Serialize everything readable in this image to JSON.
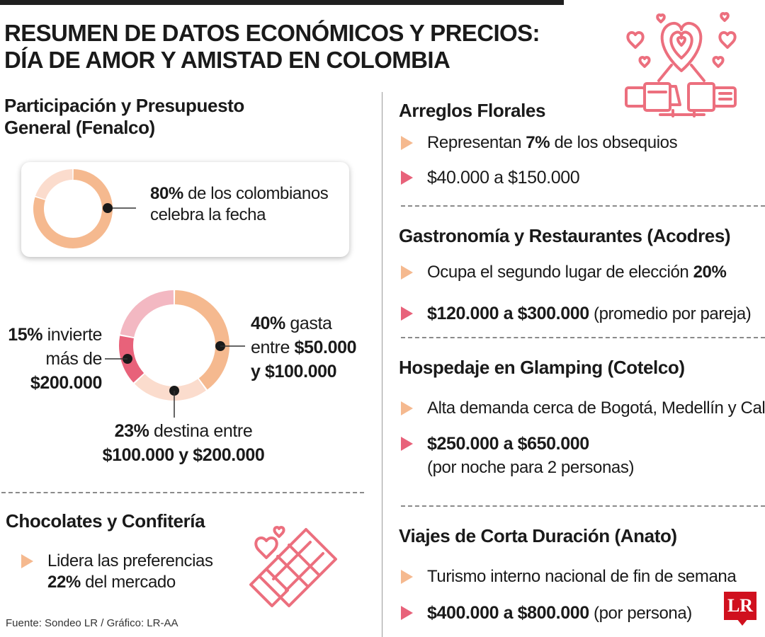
{
  "title": {
    "line1": "RESUMEN DE DATOS ECONÓMICOS Y PRECIOS:",
    "line2": "DÍA DE AMOR Y AMISTAD EN COLOMBIA"
  },
  "participation": {
    "title_line1": "Participación y Presupuesto",
    "title_line2": "General (Fenalco)",
    "celebrate_value": "80%",
    "celebrate_text1": " de los colombianos",
    "celebrate_text2": "celebra la fecha"
  },
  "budget": {
    "label_40_value": "40%",
    "label_40_text": " gasta",
    "label_40_line2_pre": "entre ",
    "label_40_line2_b": "$50.000",
    "label_40_line3": "y $100.000",
    "label_15_value": "15%",
    "label_15_text": " invierte",
    "label_15_line2": "más de",
    "label_15_line3": "$200.000",
    "label_23_value": "23%",
    "label_23_text": " destina entre",
    "label_23_line2": "$100.000 y $200.000"
  },
  "chocolates": {
    "title": "Chocolates y Confitería",
    "line1": "Lidera las preferencias",
    "value": "22%",
    "line2": " del mercado"
  },
  "flores": {
    "title": "Arreglos Florales",
    "text_pre": "Representan ",
    "text_b": "7%",
    "text_post": " de los obsequios",
    "price": "$40.000 a $150.000"
  },
  "gastronomia": {
    "title": "Gastronomía y Restaurantes (Acodres)",
    "text_pre": "Ocupa el segundo lugar de elección ",
    "text_b": "20%",
    "price": "$120.000 a $300.000",
    "price_note": " (promedio por pareja)"
  },
  "glamping": {
    "title": "Hospedaje en Glamping (Cotelco)",
    "text": "Alta demanda cerca de Bogotá, Medellín y Cali",
    "price": "$250.000 a $650.000",
    "price_note": "(por noche para 2 personas)"
  },
  "viajes": {
    "title": "Viajes de Corta Duración (Anato)",
    "text": "Turismo interno nacional de fin de semana",
    "price": "$400.000 a $800.000",
    "price_note": " (por persona)"
  },
  "source": "Fuente: Sondeo LR / Gráfico: LR-AA",
  "logo": "LR",
  "colors": {
    "peach": "#f5b98f",
    "light_peach": "#fbdccd",
    "pink": "#f3b8c2",
    "rose": "#e8627a",
    "icon": "#ec6f7e"
  },
  "chart_data": [
    {
      "type": "pie",
      "categories": [
        "celebra la fecha",
        "resto"
      ],
      "values": [
        80,
        20
      ]
    },
    {
      "type": "pie",
      "categories": [
        "gasta entre $50.000 y $100.000",
        "destina entre $100.000 y $200.000",
        "invierte más de $200.000",
        "resto"
      ],
      "values": [
        40,
        23,
        15,
        22
      ]
    }
  ]
}
